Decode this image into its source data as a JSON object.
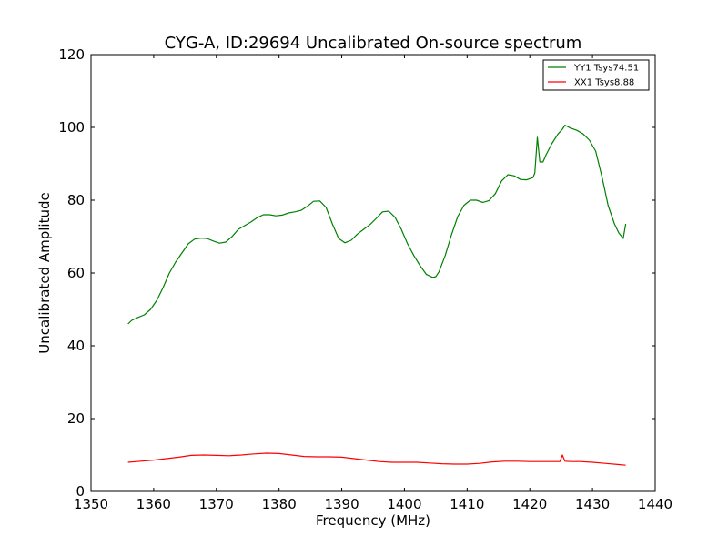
{
  "chart_data": {
    "type": "line",
    "title": "CYG-A, ID:29694 Uncalibrated On-source spectrum",
    "xlabel": "Frequency (MHz)",
    "ylabel": "Uncalibrated Amplitude",
    "xlim": [
      1350,
      1440
    ],
    "ylim": [
      0,
      120
    ],
    "xticks": [
      1350,
      1360,
      1370,
      1380,
      1390,
      1400,
      1410,
      1420,
      1430,
      1440
    ],
    "yticks": [
      0,
      20,
      40,
      60,
      80,
      100,
      120
    ],
    "grid": false,
    "legend_position": "top-right",
    "series": [
      {
        "name": "YY1 Tsys74.51",
        "color": "#008000",
        "x": [
          1355.9,
          1356.5,
          1357.5,
          1358.5,
          1359.5,
          1360.5,
          1361.5,
          1362.5,
          1363.5,
          1364.5,
          1365.5,
          1366.5,
          1367.5,
          1368.5,
          1369.5,
          1370.5,
          1371.5,
          1372.5,
          1373.5,
          1374.5,
          1375.5,
          1376.5,
          1377.5,
          1378.5,
          1379.5,
          1380.5,
          1381.5,
          1382.5,
          1383.5,
          1384.5,
          1385.5,
          1386.5,
          1387.5,
          1388.5,
          1389.5,
          1390.5,
          1391.5,
          1392.5,
          1393.5,
          1394.5,
          1395.5,
          1396.5,
          1397.5,
          1398.5,
          1399.5,
          1400.5,
          1401.5,
          1402.5,
          1403.5,
          1404.5,
          1405.0,
          1405.5,
          1406.5,
          1407.5,
          1408.5,
          1409.5,
          1410.5,
          1411.5,
          1412.5,
          1413.5,
          1414.5,
          1415.5,
          1416.5,
          1417.5,
          1418.5,
          1419.5,
          1420.5,
          1420.8,
          1421.2,
          1421.6,
          1422.1,
          1422.6,
          1423.5,
          1424.5,
          1425.2,
          1425.6,
          1426.5,
          1427.5,
          1428.5,
          1429.5,
          1430.5,
          1431.5,
          1432.5,
          1433.5,
          1434.2,
          1434.9,
          1435.3
        ],
        "values": [
          46.0,
          47.0,
          47.8,
          48.5,
          50.0,
          52.5,
          56.0,
          60.0,
          63.0,
          65.5,
          68.0,
          69.3,
          69.6,
          69.5,
          68.8,
          68.2,
          68.5,
          70.0,
          72.0,
          73.0,
          74.0,
          75.2,
          76.0,
          76.0,
          75.7,
          75.9,
          76.5,
          76.8,
          77.2,
          78.3,
          79.7,
          79.8,
          78.0,
          73.5,
          69.5,
          68.3,
          69.0,
          70.7,
          72.0,
          73.3,
          75.0,
          76.8,
          77.0,
          75.3,
          72.0,
          68.0,
          64.8,
          62.0,
          59.6,
          58.8,
          59.0,
          60.3,
          64.8,
          70.5,
          75.5,
          78.6,
          80.0,
          80.0,
          79.4,
          79.9,
          81.8,
          85.3,
          87.0,
          86.7,
          85.7,
          85.6,
          86.2,
          87.5,
          97.3,
          90.5,
          90.5,
          92.5,
          95.5,
          98.2,
          99.5,
          100.6,
          99.8,
          99.2,
          98.2,
          96.5,
          93.5,
          86.5,
          78.5,
          73.5,
          71.0,
          69.5,
          73.5
        ]
      },
      {
        "name": "XX1 Tsys8.88",
        "color": "#ff0000",
        "x": [
          1355.9,
          1358.0,
          1360.0,
          1362.0,
          1364.0,
          1366.0,
          1368.0,
          1370.0,
          1372.0,
          1374.0,
          1376.0,
          1378.0,
          1380.0,
          1382.0,
          1384.0,
          1386.0,
          1388.0,
          1390.0,
          1392.0,
          1394.0,
          1396.0,
          1398.0,
          1400.0,
          1402.0,
          1404.0,
          1406.0,
          1408.0,
          1410.0,
          1412.0,
          1414.0,
          1416.0,
          1418.0,
          1420.0,
          1422.0,
          1424.0,
          1424.8,
          1425.2,
          1425.6,
          1426.5,
          1428.0,
          1430.0,
          1432.0,
          1434.0,
          1435.3
        ],
        "values": [
          8.0,
          8.3,
          8.6,
          9.0,
          9.4,
          9.9,
          10.0,
          9.9,
          9.8,
          10.0,
          10.3,
          10.5,
          10.4,
          10.0,
          9.6,
          9.5,
          9.5,
          9.4,
          9.0,
          8.6,
          8.2,
          8.0,
          8.0,
          8.0,
          7.8,
          7.6,
          7.5,
          7.5,
          7.7,
          8.1,
          8.3,
          8.3,
          8.2,
          8.2,
          8.2,
          8.2,
          10.0,
          8.3,
          8.2,
          8.2,
          8.0,
          7.7,
          7.4,
          7.2
        ]
      }
    ]
  }
}
